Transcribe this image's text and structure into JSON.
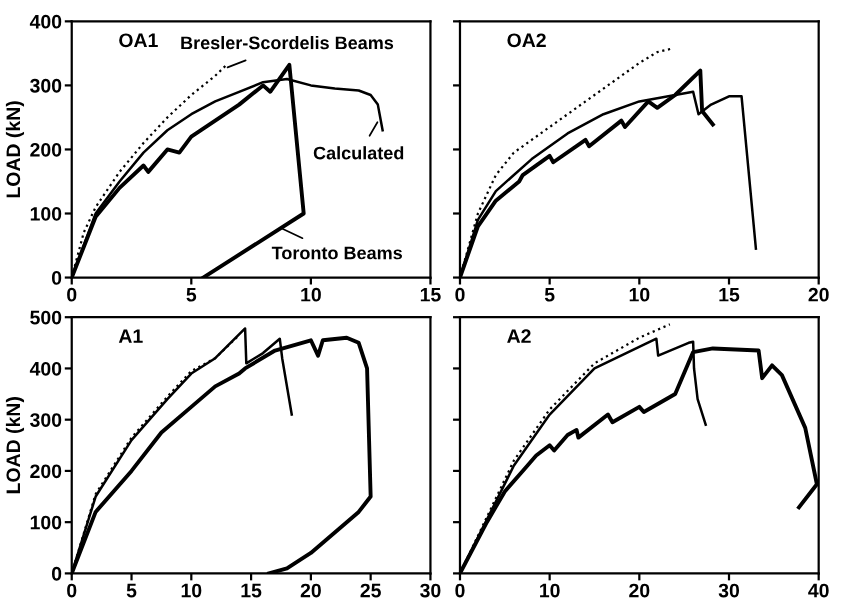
{
  "chart_data": [
    {
      "type": "line",
      "title": "OA1",
      "ylabel": "LOAD (kN)",
      "xlim": [
        0,
        15
      ],
      "ylim": [
        0,
        400
      ],
      "xticks": [
        0,
        5,
        10,
        15
      ],
      "yticks": [
        0,
        100,
        200,
        300,
        400
      ],
      "legend": false,
      "grid": false,
      "annotations": [
        {
          "text": "Bresler-Scordelis Beams",
          "x": 6.3,
          "y": 325
        },
        {
          "text": "Calculated",
          "x": 12.9,
          "y": 250
        },
        {
          "text": "Toronto Beams",
          "x": 8.6,
          "y": 80
        }
      ],
      "series": [
        {
          "color": "#000000",
          "line_style": "dotted",
          "x": [
            0,
            0.5,
            1,
            2,
            3,
            4,
            5,
            6,
            6.5
          ],
          "values": [
            0,
            70,
            110,
            165,
            210,
            250,
            285,
            315,
            333
          ]
        },
        {
          "color": "#000000",
          "line_style": "solid",
          "x": [
            0,
            1,
            2,
            3,
            4,
            5,
            6,
            7,
            8,
            9,
            10,
            11,
            12,
            12.5,
            12.8,
            12.9,
            13
          ],
          "values": [
            0,
            100,
            150,
            195,
            230,
            255,
            275,
            290,
            305,
            310,
            300,
            295,
            292,
            285,
            270,
            250,
            230
          ]
        },
        {
          "color": "#000000",
          "line_style": "solid",
          "x": [
            0,
            1,
            2,
            3,
            3.2,
            4,
            4.5,
            5,
            6,
            7,
            8,
            8.3,
            9.1,
            9.7,
            5.5
          ],
          "values": [
            0,
            95,
            140,
            175,
            165,
            200,
            195,
            220,
            245,
            270,
            300,
            290,
            332,
            100,
            0
          ]
        }
      ]
    },
    {
      "type": "line",
      "title": "OA2",
      "xlim": [
        0,
        20
      ],
      "ylim": [
        0,
        400
      ],
      "xticks": [
        0,
        5,
        10,
        15,
        20
      ],
      "yticks": [
        0,
        100,
        200,
        300,
        400
      ],
      "tick_labels": "x",
      "legend": false,
      "grid": false,
      "series": [
        {
          "color": "#000000",
          "line_style": "dotted",
          "x": [
            0,
            1,
            2,
            3,
            5,
            7,
            9,
            10,
            11,
            11.9
          ],
          "values": [
            0,
            100,
            160,
            195,
            235,
            275,
            315,
            335,
            352,
            358
          ]
        },
        {
          "color": "#000000",
          "line_style": "solid",
          "x": [
            0,
            1,
            2,
            4,
            6,
            8,
            10,
            11,
            13,
            13.3,
            14,
            15,
            15.7,
            16.5
          ],
          "values": [
            0,
            90,
            135,
            185,
            225,
            255,
            275,
            280,
            290,
            255,
            270,
            283,
            283,
            45
          ]
        },
        {
          "color": "#000000",
          "line_style": "solid",
          "x": [
            0,
            1,
            2,
            3.3,
            3.5,
            5,
            5.2,
            7,
            7.2,
            9,
            9.2,
            10.5,
            11,
            12,
            13.4,
            13.5,
            14.1
          ],
          "values": [
            0,
            80,
            120,
            150,
            160,
            190,
            180,
            215,
            205,
            245,
            235,
            275,
            265,
            285,
            323,
            260,
            239
          ]
        }
      ]
    },
    {
      "type": "line",
      "title": "A1",
      "ylabel": "LOAD (kN)",
      "xlim": [
        0,
        30
      ],
      "ylim": [
        0,
        500
      ],
      "xticks": [
        0,
        5,
        10,
        15,
        20,
        25,
        30
      ],
      "yticks": [
        0,
        100,
        200,
        300,
        400,
        500
      ],
      "legend": false,
      "grid": false,
      "series": [
        {
          "color": "#000000",
          "line_style": "dotted",
          "x": [
            0,
            2,
            5,
            8,
            10,
            12,
            14
          ],
          "values": [
            0,
            155,
            265,
            345,
            395,
            420,
            465
          ]
        },
        {
          "color": "#000000",
          "line_style": "solid",
          "x": [
            0,
            2,
            5,
            8,
            10,
            12,
            14.5,
            14.6,
            16,
            17.4,
            17.6,
            18.4
          ],
          "values": [
            0,
            150,
            260,
            340,
            390,
            420,
            478,
            410,
            430,
            458,
            420,
            310
          ]
        },
        {
          "color": "#000000",
          "line_style": "solid",
          "x": [
            0,
            2,
            5,
            7.5,
            10,
            12,
            14,
            14.5,
            17,
            20,
            20.6,
            21,
            23,
            24,
            24.7,
            25,
            24,
            22,
            20,
            18,
            16.5
          ],
          "values": [
            0,
            120,
            200,
            275,
            325,
            365,
            390,
            400,
            435,
            455,
            425,
            455,
            460,
            450,
            400,
            150,
            120,
            80,
            40,
            10,
            0
          ]
        }
      ]
    },
    {
      "type": "line",
      "title": "A2",
      "xlim": [
        0,
        40
      ],
      "ylim": [
        0,
        500
      ],
      "xticks": [
        0,
        10,
        20,
        30,
        40
      ],
      "yticks": [
        0,
        100,
        200,
        300,
        400,
        500
      ],
      "tick_labels": "x",
      "legend": false,
      "grid": false,
      "series": [
        {
          "color": "#000000",
          "line_style": "dotted",
          "x": [
            0,
            3,
            6,
            10,
            15,
            20,
            23.4
          ],
          "values": [
            0,
            110,
            220,
            320,
            410,
            460,
            486
          ]
        },
        {
          "color": "#000000",
          "line_style": "solid",
          "x": [
            0,
            3,
            6,
            10,
            15,
            21.9,
            22.1,
            25.5,
            26,
            26.1,
            26.5,
            27.4
          ],
          "values": [
            0,
            105,
            210,
            310,
            400,
            458,
            425,
            450,
            452,
            400,
            340,
            290
          ]
        },
        {
          "color": "#000000",
          "line_style": "solid",
          "x": [
            0,
            3,
            5,
            7,
            8.5,
            10,
            10.5,
            12,
            13,
            13.2,
            16.5,
            17,
            20,
            20.5,
            24,
            26,
            28.2,
            33.3,
            33.7,
            34.8,
            35.9,
            38.5,
            39.8,
            37.8
          ],
          "values": [
            0,
            100,
            160,
            200,
            230,
            250,
            240,
            270,
            280,
            265,
            310,
            295,
            325,
            315,
            350,
            432,
            439,
            435,
            381,
            406,
            387,
            284,
            174,
            129
          ]
        }
      ]
    }
  ]
}
